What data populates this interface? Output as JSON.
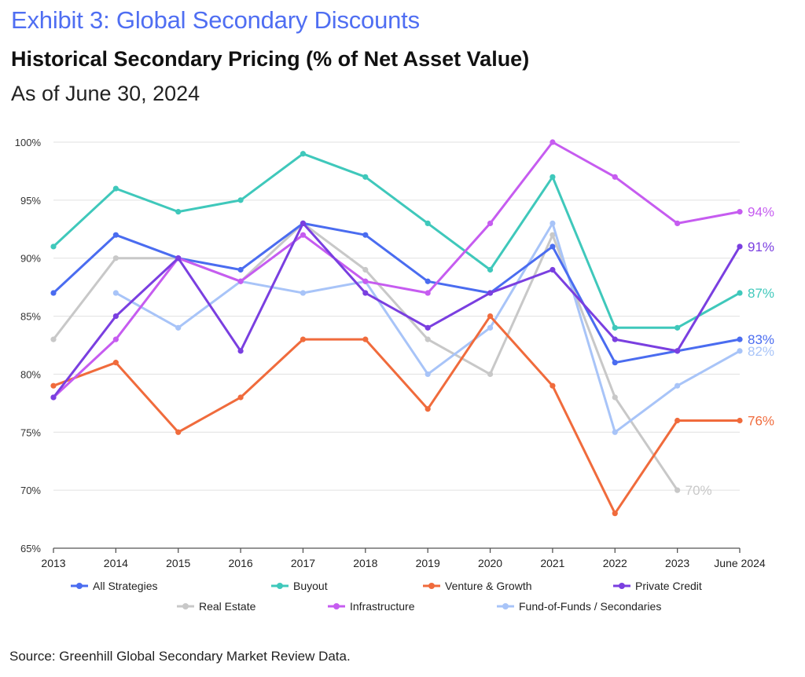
{
  "header": {
    "exhibit": "Exhibit 3: Global Secondary Discounts",
    "title": "Historical Secondary Pricing (% of Net Asset Value)",
    "subtitle": "As of June 30, 2024"
  },
  "source": "Source: Greenhill Global Secondary Market Review Data.",
  "chart_data": {
    "type": "line",
    "title": "Historical Secondary Pricing (% of Net Asset Value)",
    "xlabel": "",
    "ylabel": "",
    "categories": [
      "2013",
      "2014",
      "2015",
      "2016",
      "2017",
      "2018",
      "2019",
      "2020",
      "2021",
      "2022",
      "2023",
      "June 2024"
    ],
    "ylim": [
      65,
      100
    ],
    "yticks": [
      65,
      70,
      75,
      80,
      85,
      90,
      95,
      100
    ],
    "ytick_labels": [
      "65%",
      "70%",
      "75%",
      "80%",
      "85%",
      "90%",
      "95%",
      "100%"
    ],
    "grid": "horizontal",
    "legend_placement": "bottom",
    "series": [
      {
        "name": "All Strategies",
        "color": "#4a6cf0",
        "values": [
          87,
          92,
          90,
          89,
          93,
          92,
          88,
          87,
          91,
          81,
          82,
          83
        ],
        "end_label": "83%"
      },
      {
        "name": "Buyout",
        "color": "#3fc8bb",
        "values": [
          91,
          96,
          94,
          95,
          99,
          97,
          93,
          89,
          97,
          84,
          84,
          87
        ],
        "end_label": "87%"
      },
      {
        "name": "Venture & Growth",
        "color": "#f06b3c",
        "values": [
          79,
          81,
          75,
          78,
          83,
          83,
          77,
          85,
          79,
          68,
          76,
          76
        ],
        "end_label": "76%"
      },
      {
        "name": "Private Credit",
        "color": "#7a3fe0",
        "values": [
          78,
          85,
          90,
          82,
          93,
          87,
          84,
          87,
          89,
          83,
          82,
          91
        ],
        "end_label": "91%"
      },
      {
        "name": "Real Estate",
        "color": "#c8c8c8",
        "values": [
          83,
          90,
          90,
          88,
          93,
          89,
          83,
          80,
          92,
          78,
          70,
          null
        ],
        "end_label": "70%"
      },
      {
        "name": "Infrastructure",
        "color": "#c65cf0",
        "values": [
          78,
          83,
          90,
          88,
          92,
          88,
          87,
          93,
          100,
          97,
          93,
          94
        ],
        "end_label": "94%"
      },
      {
        "name": "Fund-of-Funds / Secondaries",
        "color": "#a8c4f8",
        "values": [
          null,
          87,
          84,
          88,
          87,
          88,
          80,
          84,
          93,
          75,
          79,
          82
        ],
        "end_label": "82%"
      }
    ]
  }
}
